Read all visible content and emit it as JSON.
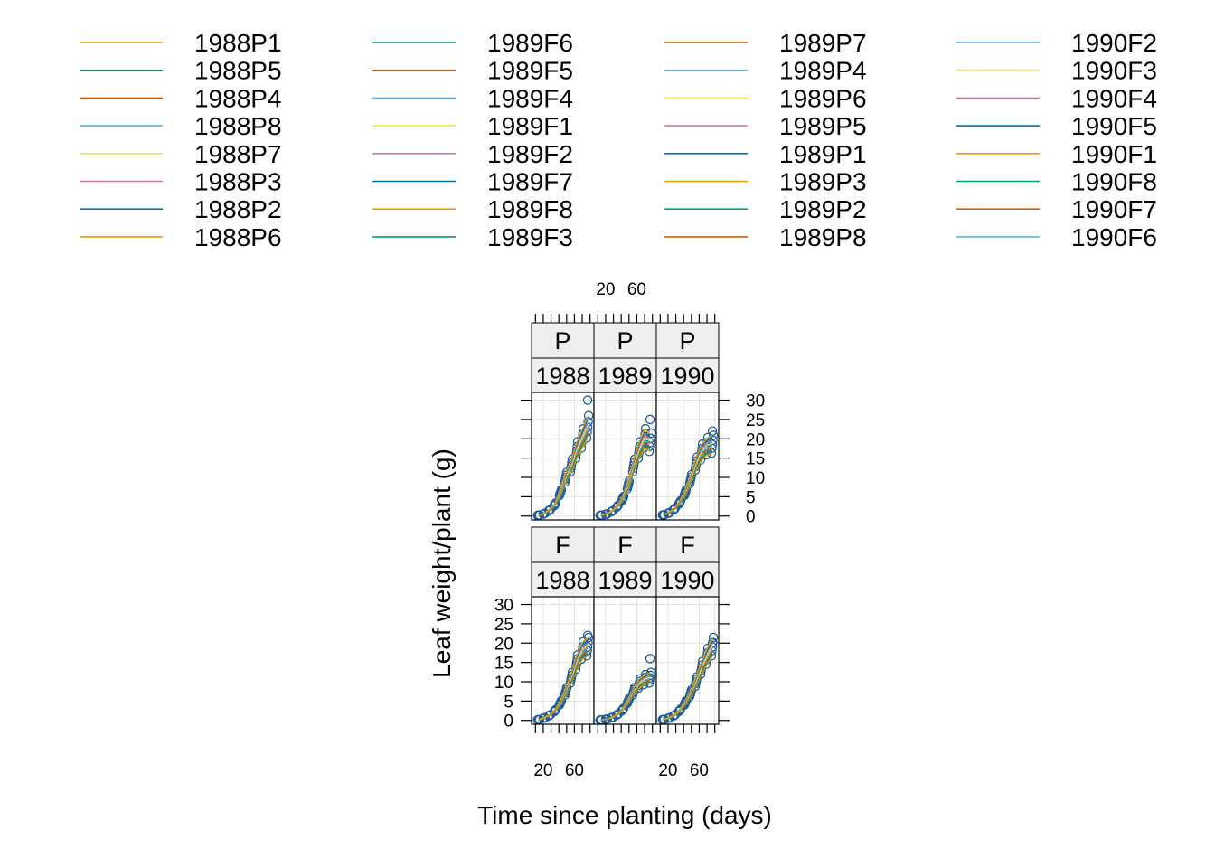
{
  "chart_data": {
    "type": "scatter",
    "xlabel": "Time since planting (days)",
    "ylabel": "Leaf weight/plant (g)",
    "x_ticks": [
      "20",
      "60"
    ],
    "y_ticks": [
      "0",
      "5",
      "10",
      "15",
      "20",
      "25",
      "30"
    ],
    "xlim": [
      5,
      85
    ],
    "ylim": [
      -1,
      32
    ],
    "grid": true,
    "legend_position": "top",
    "palette": [
      "#E69F00",
      "#009E73",
      "#D55E00",
      "#56B4E9",
      "#F0E442",
      "#CC79A7",
      "#0072B2"
    ],
    "point_color": "#1F5F9E",
    "legend": [
      {
        "label": "1988P1",
        "color": "#E69F00"
      },
      {
        "label": "1988P5",
        "color": "#009E73"
      },
      {
        "label": "1988P4",
        "color": "#D55E00"
      },
      {
        "label": "1988P8",
        "color": "#56B4E9"
      },
      {
        "label": "1988P7",
        "color": "#F0E442"
      },
      {
        "label": "1988P3",
        "color": "#CC79A7"
      },
      {
        "label": "1988P2",
        "color": "#0072B2"
      },
      {
        "label": "1988P6",
        "color": "#E69F00"
      },
      {
        "label": "1989F6",
        "color": "#009E73"
      },
      {
        "label": "1989F5",
        "color": "#D55E00"
      },
      {
        "label": "1989F4",
        "color": "#56B4E9"
      },
      {
        "label": "1989F1",
        "color": "#F0E442"
      },
      {
        "label": "1989F2",
        "color": "#CC79A7"
      },
      {
        "label": "1989F7",
        "color": "#0072B2"
      },
      {
        "label": "1989F8",
        "color": "#E69F00"
      },
      {
        "label": "1989F3",
        "color": "#009E73"
      },
      {
        "label": "1989P7",
        "color": "#D55E00"
      },
      {
        "label": "1989P4",
        "color": "#56B4E9"
      },
      {
        "label": "1989P6",
        "color": "#F0E442"
      },
      {
        "label": "1989P5",
        "color": "#CC79A7"
      },
      {
        "label": "1989P1",
        "color": "#0072B2"
      },
      {
        "label": "1989P3",
        "color": "#E69F00"
      },
      {
        "label": "1989P2",
        "color": "#009E73"
      },
      {
        "label": "1989P8",
        "color": "#D55E00"
      },
      {
        "label": "1990F2",
        "color": "#56B4E9"
      },
      {
        "label": "1990F3",
        "color": "#F0E442"
      },
      {
        "label": "1990F4",
        "color": "#CC79A7"
      },
      {
        "label": "1990F5",
        "color": "#0072B2"
      },
      {
        "label": "1990F1",
        "color": "#E69F00"
      },
      {
        "label": "1990F8",
        "color": "#009E73"
      },
      {
        "label": "1990F7",
        "color": "#D55E00"
      },
      {
        "label": "1990F6",
        "color": "#56B4E9"
      }
    ],
    "panels": [
      {
        "strip_top": "P",
        "strip_bottom": "1988",
        "x": [
          14,
          21,
          28,
          35,
          42,
          49,
          56,
          63,
          70,
          77
        ],
        "y": [
          0.2,
          0.6,
          1.5,
          3.0,
          6.0,
          10.0,
          13.0,
          17.0,
          20.0,
          23.0
        ],
        "max": 30
      },
      {
        "strip_top": "P",
        "strip_bottom": "1989",
        "x": [
          14,
          21,
          28,
          35,
          42,
          49,
          56,
          63,
          70,
          77
        ],
        "y": [
          0.2,
          0.5,
          1.2,
          2.5,
          4.5,
          8.0,
          13.0,
          17.0,
          20.0,
          19.0
        ],
        "max": 25
      },
      {
        "strip_top": "P",
        "strip_bottom": "1990",
        "x": [
          14,
          21,
          28,
          35,
          42,
          49,
          56,
          63,
          70,
          77
        ],
        "y": [
          0.3,
          0.8,
          1.8,
          3.5,
          6.0,
          9.5,
          13.5,
          16.5,
          18.0,
          18.5
        ],
        "max": 22
      },
      {
        "strip_top": "F",
        "strip_bottom": "1988",
        "x": [
          14,
          21,
          28,
          35,
          42,
          49,
          56,
          63,
          70,
          77
        ],
        "y": [
          0.2,
          0.6,
          1.3,
          2.5,
          4.5,
          7.5,
          11.0,
          15.0,
          18.0,
          19.0
        ],
        "max": 22
      },
      {
        "strip_top": "F",
        "strip_bottom": "1989",
        "x": [
          14,
          21,
          28,
          35,
          42,
          49,
          56,
          63,
          70,
          77
        ],
        "y": [
          0.1,
          0.3,
          0.7,
          1.5,
          2.8,
          5.0,
          7.5,
          9.5,
          10.5,
          11.0
        ],
        "max": 16
      },
      {
        "strip_top": "F",
        "strip_bottom": "1990",
        "x": [
          14,
          21,
          28,
          35,
          42,
          49,
          56,
          63,
          70,
          77
        ],
        "y": [
          0.2,
          0.6,
          1.3,
          2.6,
          4.5,
          7.0,
          10.0,
          13.5,
          16.5,
          19.0
        ],
        "max": 20
      }
    ]
  }
}
